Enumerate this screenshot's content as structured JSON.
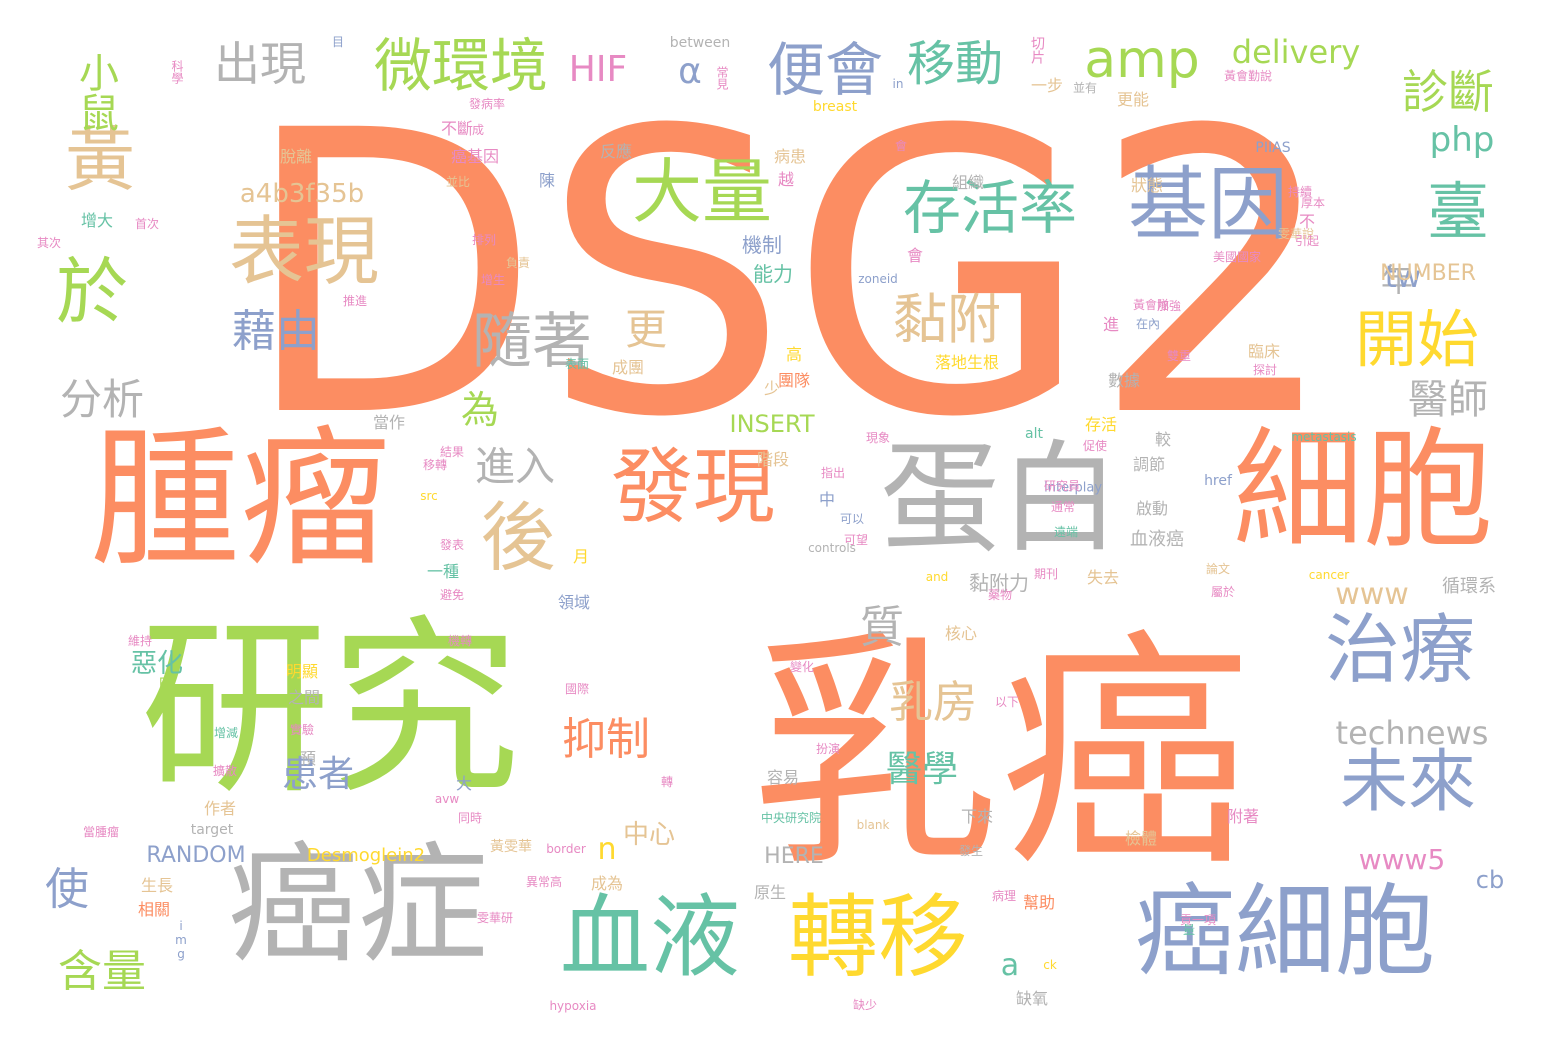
{
  "palette": {
    "orange": "#fc8d62",
    "green": "#a6d854",
    "blue": "#8da0cb",
    "gray": "#b3b3b3",
    "tan": "#e5c494",
    "yellow": "#ffd92f",
    "teal": "#66c2a5",
    "pink": "#e78ac3"
  },
  "words": [
    {
      "text": "DSG2",
      "color": "orange"
    },
    {
      "text": "乳癌",
      "color": "orange"
    },
    {
      "text": "研究",
      "color": "green"
    },
    {
      "text": "腫瘤",
      "color": "orange"
    },
    {
      "text": "癌症",
      "color": "gray"
    },
    {
      "text": "細胞",
      "color": "orange"
    },
    {
      "text": "蛋白",
      "color": "gray"
    },
    {
      "text": "癌細胞",
      "color": "blue"
    },
    {
      "text": "血液",
      "color": "teal"
    },
    {
      "text": "轉移",
      "color": "yellow"
    },
    {
      "text": "發現",
      "color": "orange"
    },
    {
      "text": "基因",
      "color": "blue"
    },
    {
      "text": "表現",
      "color": "tan"
    },
    {
      "text": "治療",
      "color": "blue"
    },
    {
      "text": "未來",
      "color": "blue"
    },
    {
      "text": "後",
      "color": "tan"
    },
    {
      "text": "黃",
      "color": "tan"
    },
    {
      "text": "於",
      "color": "green"
    },
    {
      "text": "大量",
      "color": "green"
    },
    {
      "text": "存活率",
      "color": "teal"
    },
    {
      "text": "開始",
      "color": "yellow"
    },
    {
      "text": "臺",
      "color": "teal"
    },
    {
      "text": "黏附",
      "color": "tan"
    },
    {
      "text": "隨著",
      "color": "gray"
    },
    {
      "text": "微環境",
      "color": "green"
    },
    {
      "text": "便會",
      "color": "blue"
    },
    {
      "text": "移動",
      "color": "teal"
    },
    {
      "text": "amp",
      "color": "green"
    },
    {
      "text": "小鼠",
      "color": "green"
    },
    {
      "text": "出現",
      "color": "gray"
    },
    {
      "text": "診斷",
      "color": "green"
    },
    {
      "text": "藉由",
      "color": "blue"
    },
    {
      "text": "分析",
      "color": "gray"
    },
    {
      "text": "使",
      "color": "blue"
    },
    {
      "text": "含量",
      "color": "green"
    },
    {
      "text": "乳房",
      "color": "tan"
    },
    {
      "text": "抑制",
      "color": "orange"
    },
    {
      "text": "質",
      "color": "gray"
    },
    {
      "text": "進入",
      "color": "gray"
    },
    {
      "text": "患者",
      "color": "blue"
    },
    {
      "text": "醫學",
      "color": "teal"
    },
    {
      "text": "醫師",
      "color": "gray"
    },
    {
      "text": "更",
      "color": "tan"
    },
    {
      "text": "為",
      "color": "green"
    },
    {
      "text": "年",
      "color": "gray"
    },
    {
      "text": "HIF",
      "color": "pink"
    },
    {
      "text": "α",
      "color": "blue"
    },
    {
      "text": "delivery",
      "color": "green"
    },
    {
      "text": "php",
      "color": "teal"
    },
    {
      "text": "technews",
      "color": "gray"
    },
    {
      "text": "www",
      "color": "tan"
    },
    {
      "text": "www5",
      "color": "pink"
    },
    {
      "text": "tw",
      "color": "blue"
    },
    {
      "text": "a4b3f35b",
      "color": "tan"
    },
    {
      "text": "INSERT",
      "color": "green"
    },
    {
      "text": "NUMBER",
      "color": "tan"
    },
    {
      "text": "RANDOM",
      "color": "blue"
    },
    {
      "text": "HERE",
      "color": "gray"
    },
    {
      "text": "Desmoglein2",
      "color": "yellow"
    },
    {
      "text": "a",
      "color": "teal"
    },
    {
      "text": "n",
      "color": "yellow"
    },
    {
      "text": "cb",
      "color": "blue"
    },
    {
      "text": "中心",
      "color": "tan"
    },
    {
      "text": "惡化",
      "color": "teal"
    },
    {
      "text": "機制",
      "color": "blue"
    },
    {
      "text": "能力",
      "color": "teal"
    },
    {
      "text": "黏附力",
      "color": "gray"
    },
    {
      "text": "循環系",
      "color": "gray"
    },
    {
      "text": "血液癌",
      "color": "gray"
    },
    {
      "text": "失去",
      "color": "tan"
    },
    {
      "text": "一種",
      "color": "teal"
    },
    {
      "text": "領域",
      "color": "blue"
    },
    {
      "text": "核心",
      "color": "tan"
    },
    {
      "text": "明顯",
      "color": "yellow"
    },
    {
      "text": "生長",
      "color": "tan"
    },
    {
      "text": "相關",
      "color": "orange"
    },
    {
      "text": "原生",
      "color": "gray"
    },
    {
      "text": "成為",
      "color": "tan"
    },
    {
      "text": "容易",
      "color": "gray"
    },
    {
      "text": "檢體",
      "color": "tan"
    },
    {
      "text": "附著",
      "color": "pink"
    },
    {
      "text": "作者",
      "color": "tan"
    },
    {
      "text": "缺氧",
      "color": "gray"
    },
    {
      "text": "幫助",
      "color": "orange"
    },
    {
      "text": "數據",
      "color": "gray"
    },
    {
      "text": "存活",
      "color": "yellow"
    },
    {
      "text": "調節",
      "color": "gray"
    },
    {
      "text": "啟動",
      "color": "gray"
    },
    {
      "text": "團隊",
      "color": "orange"
    },
    {
      "text": "成團",
      "color": "tan"
    },
    {
      "text": "階段",
      "color": "tan"
    },
    {
      "text": "當作",
      "color": "gray"
    },
    {
      "text": "狀態",
      "color": "tan"
    },
    {
      "text": "組織",
      "color": "gray"
    },
    {
      "text": "反應",
      "color": "gray"
    },
    {
      "text": "脫離",
      "color": "tan"
    },
    {
      "text": "癌基因",
      "color": "pink"
    },
    {
      "text": "不斷",
      "color": "pink"
    },
    {
      "text": "病患",
      "color": "tan"
    },
    {
      "text": "更能",
      "color": "tan"
    },
    {
      "text": "一步",
      "color": "tan"
    },
    {
      "text": "增大",
      "color": "teal"
    },
    {
      "text": "落地生根",
      "color": "yellow"
    },
    {
      "text": "臨床",
      "color": "tan"
    },
    {
      "text": "較",
      "color": "gray"
    },
    {
      "text": "下來",
      "color": "gray"
    },
    {
      "text": "預",
      "color": "gray"
    },
    {
      "text": "之間",
      "color": "gray"
    },
    {
      "text": "高",
      "color": "yellow"
    },
    {
      "text": "少",
      "color": "tan"
    },
    {
      "text": "中",
      "color": "blue"
    },
    {
      "text": "進",
      "color": "pink"
    },
    {
      "text": "月",
      "color": "yellow"
    },
    {
      "text": "大",
      "color": "blue"
    },
    {
      "text": "時",
      "color": "green"
    },
    {
      "text": "陳",
      "color": "blue"
    },
    {
      "text": "越",
      "color": "pink"
    },
    {
      "text": "會",
      "color": "pink"
    },
    {
      "text": "不",
      "color": "pink"
    },
    {
      "text": "between",
      "color": "gray"
    },
    {
      "text": "breast",
      "color": "yellow"
    },
    {
      "text": "PIIAS",
      "color": "blue"
    },
    {
      "text": "zoneid",
      "color": "blue"
    },
    {
      "text": "metastasis",
      "color": "teal"
    },
    {
      "text": "Interplay",
      "color": "blue"
    },
    {
      "text": "alt",
      "color": "teal"
    },
    {
      "text": "href",
      "color": "blue"
    },
    {
      "text": "src",
      "color": "yellow"
    },
    {
      "text": "controls",
      "color": "gray"
    },
    {
      "text": "and",
      "color": "yellow"
    },
    {
      "text": "cancer",
      "color": "yellow"
    },
    {
      "text": "blank",
      "color": "tan"
    },
    {
      "text": "target",
      "color": "gray"
    },
    {
      "text": "border",
      "color": "pink"
    },
    {
      "text": "img",
      "color": "blue"
    },
    {
      "text": "ck",
      "color": "yellow"
    },
    {
      "text": "hypoxia",
      "color": "pink"
    },
    {
      "text": "avw",
      "color": "pink"
    },
    {
      "text": "in",
      "color": "blue"
    },
    {
      "text": "切片",
      "color": "pink"
    },
    {
      "text": "黃雯華",
      "color": "tan"
    },
    {
      "text": "中央研究院",
      "color": "teal"
    },
    {
      "text": "發表",
      "color": "pink"
    },
    {
      "text": "美國國家",
      "color": "pink"
    },
    {
      "text": "黃會勤說",
      "color": "pink"
    },
    {
      "text": "並有",
      "color": "gray"
    },
    {
      "text": "同時",
      "color": "pink"
    },
    {
      "text": "可以",
      "color": "blue"
    },
    {
      "text": "常見",
      "color": "pink"
    },
    {
      "text": "發病率",
      "color": "pink"
    },
    {
      "text": "首次",
      "color": "pink"
    },
    {
      "text": "負責",
      "color": "tan"
    },
    {
      "text": "其次",
      "color": "pink"
    },
    {
      "text": "通常",
      "color": "pink"
    },
    {
      "text": "並比",
      "color": "tan"
    },
    {
      "text": "成",
      "color": "pink"
    },
    {
      "text": "會",
      "color": "pink"
    },
    {
      "text": "科學",
      "color": "pink"
    },
    {
      "text": "目",
      "color": "blue"
    },
    {
      "text": "促使",
      "color": "pink"
    },
    {
      "text": "以下",
      "color": "pink"
    },
    {
      "text": "黃會隊",
      "color": "pink"
    },
    {
      "text": "雯華說",
      "color": "tan"
    },
    {
      "text": "在內",
      "color": "blue"
    },
    {
      "text": "變化",
      "color": "pink"
    },
    {
      "text": "期刊",
      "color": "pink"
    },
    {
      "text": "國際",
      "color": "pink"
    },
    {
      "text": "論文",
      "color": "tan"
    },
    {
      "text": "表面",
      "color": "teal"
    },
    {
      "text": "雙重",
      "color": "pink"
    },
    {
      "text": "推進",
      "color": "pink"
    },
    {
      "text": "結果",
      "color": "pink"
    },
    {
      "text": "現象",
      "color": "pink"
    },
    {
      "text": "指出",
      "color": "pink"
    },
    {
      "text": "排列",
      "color": "pink"
    },
    {
      "text": "移轉",
      "color": "pink"
    },
    {
      "text": "實驗",
      "color": "pink"
    },
    {
      "text": "當腫瘤",
      "color": "pink"
    },
    {
      "text": "增生",
      "color": "pink"
    },
    {
      "text": "探討",
      "color": "pink"
    },
    {
      "text": "增減",
      "color": "teal"
    },
    {
      "text": "研究員",
      "color": "pink"
    },
    {
      "text": "遠端",
      "color": "teal"
    },
    {
      "text": "轉",
      "color": "pink"
    },
    {
      "text": "避免",
      "color": "pink"
    },
    {
      "text": "擴散",
      "color": "pink"
    },
    {
      "text": "維持",
      "color": "pink"
    },
    {
      "text": "屬於",
      "color": "pink"
    },
    {
      "text": "加強",
      "color": "pink"
    },
    {
      "text": "引起",
      "color": "pink"
    },
    {
      "text": "缺少",
      "color": "pink"
    },
    {
      "text": "發生",
      "color": "gray"
    },
    {
      "text": "病理",
      "color": "pink"
    },
    {
      "text": "量",
      "color": "teal"
    },
    {
      "text": "貢一項",
      "color": "pink"
    },
    {
      "text": "機轉",
      "color": "pink"
    },
    {
      "text": "藥物",
      "color": "pink"
    },
    {
      "text": "厚本",
      "color": "pink"
    },
    {
      "text": "可望",
      "color": "pink"
    },
    {
      "text": "持續",
      "color": "pink"
    },
    {
      "text": "扮演",
      "color": "pink"
    },
    {
      "text": "異常高",
      "color": "pink"
    },
    {
      "text": "雯華研",
      "color": "pink"
    }
  ]
}
